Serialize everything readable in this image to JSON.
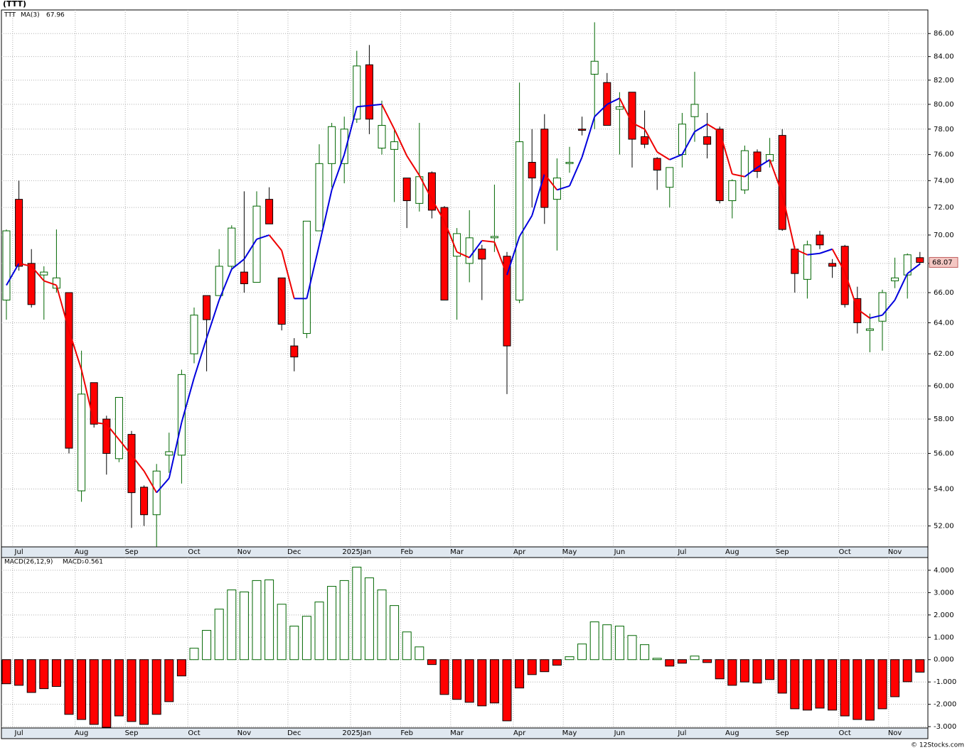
{
  "chart_data": [
    {
      "type": "candlestick",
      "title": "(TTT)",
      "name": "TTT",
      "categories": [
        null,
        "Jul",
        null,
        null,
        null,
        null,
        "Aug",
        null,
        null,
        null,
        "Sep",
        null,
        null,
        null,
        null,
        "Oct",
        null,
        null,
        null,
        "Nov",
        null,
        null,
        null,
        "Dec",
        null,
        null,
        null,
        null,
        "2025Jan",
        null,
        null,
        null,
        "Feb",
        null,
        null,
        null,
        "Mar",
        null,
        null,
        null,
        null,
        "Apr",
        null,
        null,
        null,
        "May",
        null,
        null,
        null,
        "Jun",
        null,
        null,
        null,
        null,
        "Jul",
        null,
        null,
        null,
        "Aug",
        null,
        null,
        null,
        "Sep",
        null,
        null,
        null,
        null,
        "Oct",
        null,
        null,
        null,
        "Nov",
        null,
        null
      ],
      "open": [
        65.5,
        72.6,
        68.0,
        67.2,
        66.3,
        66.0,
        53.9,
        60.2,
        58.0,
        55.7,
        57.1,
        54.1,
        52.6,
        55.9,
        55.9,
        62.0,
        65.8,
        65.8,
        67.8,
        67.4,
        66.7,
        72.6,
        67.0,
        62.5,
        63.3,
        70.3,
        75.3,
        75.3,
        78.8,
        83.3,
        76.5,
        76.4,
        74.2,
        72.3,
        74.6,
        72.0,
        68.5,
        68.0,
        69.0,
        69.8,
        68.5,
        65.5,
        75.4,
        78.0,
        72.6,
        75.3,
        78.0,
        82.5,
        81.8,
        79.6,
        81.0,
        77.4,
        75.7,
        73.5,
        76.0,
        79.0,
        77.4,
        78.0,
        72.5,
        73.3,
        76.2,
        75.5,
        77.5,
        69.0,
        66.9,
        70.0,
        68.0,
        69.2,
        65.6,
        63.5,
        64.1,
        66.8,
        67.2,
        68.4
      ],
      "high": [
        70.4,
        74.0,
        69.0,
        67.8,
        70.4,
        66.0,
        62.2,
        60.2,
        58.2,
        59.3,
        57.3,
        54.2,
        55.4,
        57.2,
        61.0,
        65.0,
        65.8,
        69.0,
        70.7,
        73.2,
        73.2,
        73.5,
        67.0,
        63.0,
        71.0,
        76.8,
        78.5,
        79.0,
        84.5,
        85.0,
        80.3,
        78.0,
        74.2,
        78.5,
        74.7,
        72.1,
        70.5,
        71.8,
        69.3,
        73.7,
        68.8,
        81.8,
        78.0,
        79.2,
        75.7,
        76.6,
        79.0,
        87.0,
        82.6,
        81.0,
        81.0,
        79.5,
        75.8,
        75.0,
        79.3,
        82.7,
        79.3,
        78.2,
        74.1,
        76.7,
        76.4,
        77.3,
        78.0,
        69.2,
        69.6,
        70.3,
        68.3,
        69.3,
        66.4,
        64.6,
        66.2,
        68.4,
        68.7,
        68.8
      ],
      "low": [
        64.2,
        67.5,
        65.0,
        64.2,
        66.0,
        56.0,
        53.3,
        57.5,
        54.8,
        55.5,
        51.9,
        52.0,
        50.9,
        54.9,
        54.3,
        61.4,
        60.9,
        65.8,
        67.5,
        66.0,
        66.7,
        70.8,
        63.5,
        60.9,
        63.0,
        70.3,
        73.5,
        73.8,
        78.5,
        77.6,
        76.0,
        72.4,
        70.5,
        71.7,
        71.2,
        65.5,
        64.2,
        66.7,
        65.5,
        68.8,
        59.5,
        65.3,
        72.0,
        70.8,
        68.9,
        74.6,
        77.5,
        78.0,
        78.3,
        76.0,
        75.0,
        76.5,
        73.3,
        72.0,
        75.0,
        77.0,
        75.7,
        72.3,
        71.2,
        73.0,
        74.2,
        75.0,
        70.3,
        66.0,
        65.6,
        69.0,
        67.0,
        65.0,
        63.3,
        62.1,
        62.2,
        66.3,
        65.6,
        67.9
      ],
      "close": [
        70.3,
        67.8,
        65.2,
        67.4,
        67.0,
        56.3,
        59.5,
        57.7,
        56.0,
        59.3,
        53.8,
        52.6,
        55.0,
        56.1,
        60.7,
        64.5,
        64.2,
        67.8,
        70.5,
        66.6,
        72.1,
        70.8,
        63.9,
        61.8,
        71.0,
        75.3,
        78.2,
        78.0,
        83.2,
        78.8,
        78.3,
        77.0,
        72.5,
        74.3,
        71.8,
        65.5,
        70.1,
        69.8,
        68.3,
        69.9,
        62.5,
        77.0,
        74.2,
        72.0,
        74.2,
        75.4,
        77.9,
        83.6,
        78.3,
        79.8,
        77.2,
        76.8,
        74.8,
        75.0,
        78.4,
        80.0,
        76.8,
        72.5,
        74.0,
        76.3,
        74.7,
        76.0,
        70.4,
        67.3,
        69.3,
        69.3,
        67.8,
        65.2,
        64.0,
        63.6,
        66.0,
        67.0,
        68.6,
        68.07
      ],
      "up_color": "#006600",
      "down_color": "#ff0000",
      "series": [
        {
          "name": "MA(3)",
          "color": "#0000dd",
          "down_color": "#ee0000",
          "values": [
            66.5,
            68.0,
            67.8,
            66.8,
            66.5,
            63.5,
            61.0,
            57.8,
            57.7,
            56.8,
            55.9,
            55.0,
            53.8,
            54.6,
            57.8,
            60.5,
            63.0,
            65.5,
            67.6,
            68.3,
            69.7,
            70.0,
            68.9,
            65.6,
            65.6,
            69.3,
            73.3,
            76.0,
            79.8,
            79.9,
            80.0,
            78.0,
            75.9,
            74.4,
            72.6,
            71.0,
            68.8,
            68.4,
            69.6,
            69.5,
            67.2,
            69.9,
            71.4,
            74.5,
            73.3,
            73.6,
            75.8,
            79.0,
            80.0,
            80.5,
            78.5,
            78.0,
            76.2,
            75.6,
            76.0,
            77.8,
            78.4,
            77.8,
            74.5,
            74.3,
            75.0,
            75.6,
            73.0,
            69.0,
            68.6,
            68.7,
            69.0,
            67.4,
            64.9,
            64.3,
            64.5,
            65.5,
            67.3,
            67.96
          ]
        }
      ],
      "log_scale": true,
      "grid": true,
      "ylim": [
        50.9,
        88.1
      ],
      "yticks": [
        {
          "value": 52,
          "label": "52.00"
        },
        {
          "value": 54,
          "label": "54.00"
        },
        {
          "value": 56,
          "label": "56.00"
        },
        {
          "value": 58,
          "label": "58.00"
        },
        {
          "value": 60,
          "label": "60.00"
        },
        {
          "value": 62,
          "label": "62.00"
        },
        {
          "value": 64,
          "label": "64.00"
        },
        {
          "value": 66,
          "label": "66.00"
        },
        {
          "value": 68,
          "label": "68.00"
        },
        {
          "value": 70,
          "label": "70.00"
        },
        {
          "value": 72,
          "label": "72.00"
        },
        {
          "value": 74,
          "label": "74.00"
        },
        {
          "value": 76,
          "label": "76.00"
        },
        {
          "value": 78,
          "label": "78.00"
        },
        {
          "value": 80,
          "label": "80.00"
        },
        {
          "value": 82,
          "label": "82.00"
        },
        {
          "value": 84,
          "label": "84.00"
        },
        {
          "value": 86,
          "label": "86.00"
        }
      ]
    },
    {
      "type": "bar",
      "title": "MACD(26,12,9)",
      "categories": [
        null,
        "Jul",
        null,
        null,
        null,
        null,
        "Aug",
        null,
        null,
        null,
        "Sep",
        null,
        null,
        null,
        null,
        "Oct",
        null,
        null,
        null,
        "Nov",
        null,
        null,
        null,
        "Dec",
        null,
        null,
        null,
        null,
        "2025Jan",
        null,
        null,
        null,
        "Feb",
        null,
        null,
        null,
        "Mar",
        null,
        null,
        null,
        null,
        "Apr",
        null,
        null,
        null,
        "May",
        null,
        null,
        null,
        "Jun",
        null,
        null,
        null,
        null,
        "Jul",
        null,
        null,
        null,
        "Aug",
        null,
        null,
        null,
        "Sep",
        null,
        null,
        null,
        null,
        "Oct",
        null,
        null,
        null,
        "Nov",
        null,
        null
      ],
      "series": [
        {
          "name": "MACD:",
          "color": "#0000dd",
          "up_color": "#006600",
          "down_color": "#ff0000",
          "values": [
            -1.08,
            -1.15,
            -1.47,
            -1.3,
            -1.2,
            -2.45,
            -2.68,
            -2.9,
            -3.03,
            -2.52,
            -2.77,
            -2.9,
            -2.45,
            -1.88,
            -0.73,
            0.51,
            1.31,
            2.26,
            3.12,
            3.03,
            3.54,
            3.57,
            2.48,
            1.5,
            1.94,
            2.58,
            3.28,
            3.54,
            4.14,
            3.66,
            3.12,
            2.42,
            1.24,
            0.57,
            -0.22,
            -1.56,
            -1.78,
            -1.91,
            -2.07,
            -1.94,
            -2.74,
            -1.27,
            -0.67,
            -0.54,
            -0.25,
            0.13,
            0.7,
            1.69,
            1.56,
            1.5,
            1.08,
            0.67,
            0.06,
            -0.29,
            -0.16,
            0.16,
            -0.13,
            -0.86,
            -1.15,
            -1.0,
            -1.05,
            -0.89,
            -1.5,
            -2.2,
            -2.26,
            -2.17,
            -2.26,
            -2.52,
            -2.68,
            -2.71,
            -2.2,
            -1.66,
            -0.99,
            -0.561
          ]
        }
      ],
      "grid": true,
      "ylim": [
        -3.06,
        4.57
      ],
      "yticks": [
        {
          "value": -3,
          "label": "-3.000"
        },
        {
          "value": -2,
          "label": "-2.000"
        },
        {
          "value": -1,
          "label": "-1.000"
        },
        {
          "value": 0,
          "label": "0.000"
        },
        {
          "value": 1,
          "label": "1.000"
        },
        {
          "value": 2,
          "label": "2.000"
        },
        {
          "value": 3,
          "label": "3.000"
        },
        {
          "value": 4,
          "label": "4.000"
        }
      ]
    }
  ],
  "credit": "© 12Stocks.com"
}
